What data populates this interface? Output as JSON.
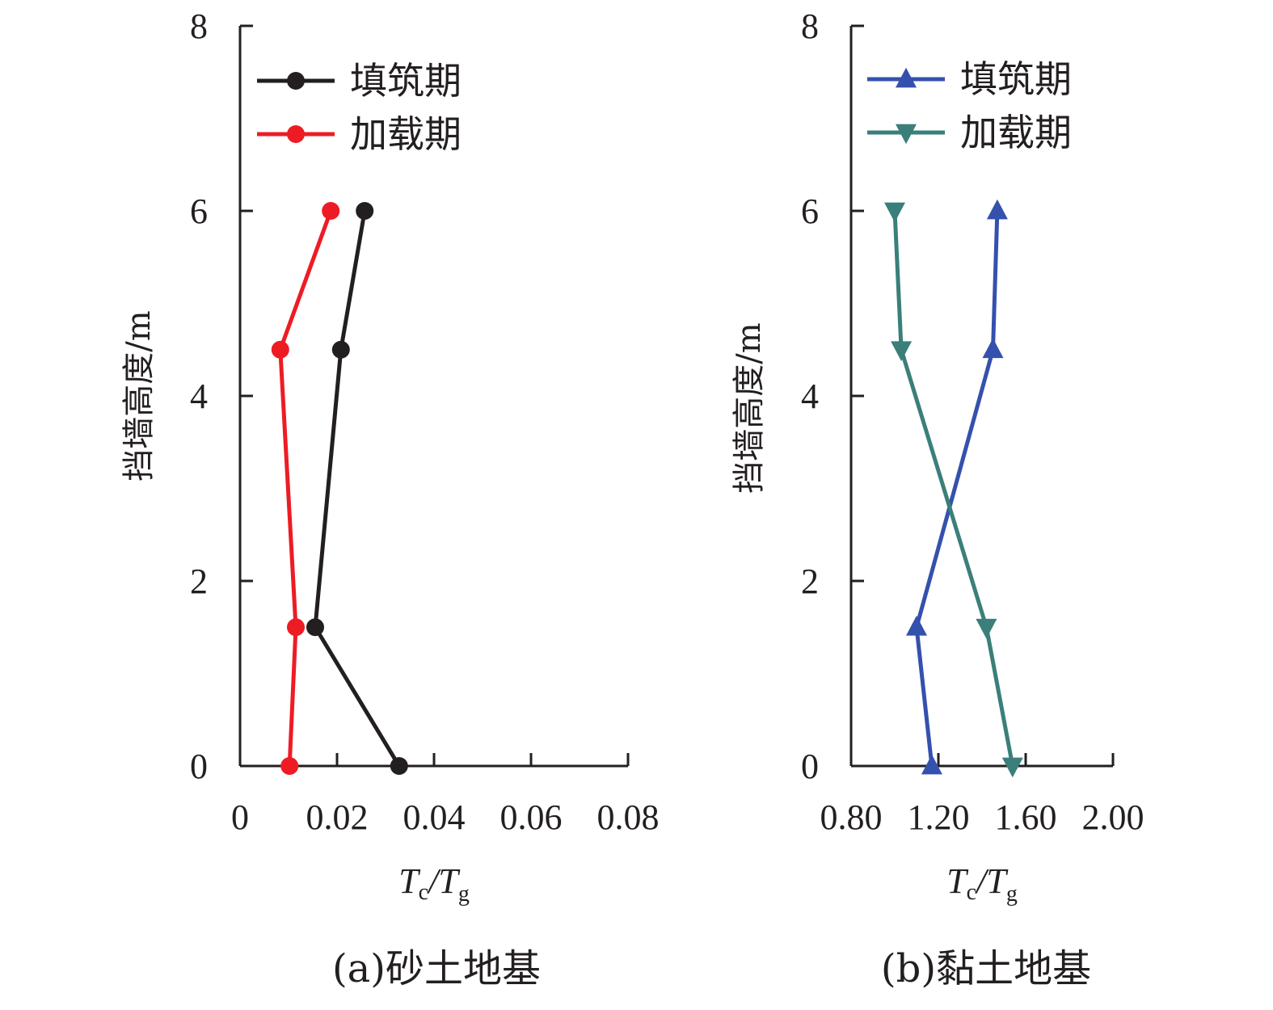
{
  "chart_data": [
    {
      "type": "line",
      "panel": "(a)",
      "title": "(a)砂土地基",
      "xlabel": "Tc/Tg",
      "xlabel_main": "T",
      "xlabel_sub1": "c",
      "xlabel_sub2": "g",
      "ylabel": "挡墙高度/m",
      "xlim": [
        0,
        0.08
      ],
      "ylim": [
        0,
        8
      ],
      "xticks": [
        0,
        0.02,
        0.04,
        0.06,
        0.08
      ],
      "xtick_labels": [
        "0",
        "0.02",
        "0.04",
        "0.06",
        "0.08"
      ],
      "yticks": [
        0,
        2,
        4,
        6,
        8
      ],
      "ytick_labels": [
        "0",
        "2",
        "4",
        "6",
        "8"
      ],
      "grid": false,
      "legend_position": "top-left",
      "series": [
        {
          "name": "填筑期",
          "color": "#231f20",
          "marker": "circle",
          "points": [
            {
              "x": 0.0257,
              "y": 6.0
            },
            {
              "x": 0.0208,
              "y": 4.5
            },
            {
              "x": 0.0155,
              "y": 1.5
            },
            {
              "x": 0.0328,
              "y": 0.0
            }
          ]
        },
        {
          "name": "加载期",
          "color": "#ed1c24",
          "marker": "circle",
          "points": [
            {
              "x": 0.0187,
              "y": 6.0
            },
            {
              "x": 0.0083,
              "y": 4.5
            },
            {
              "x": 0.0115,
              "y": 1.5
            },
            {
              "x": 0.0102,
              "y": 0.0
            }
          ]
        }
      ]
    },
    {
      "type": "line",
      "panel": "(b)",
      "title": "(b)黏土地基",
      "xlabel": "Tc/Tg",
      "xlabel_main": "T",
      "xlabel_sub1": "c",
      "xlabel_sub2": "g",
      "ylabel": "挡墙高度/m",
      "xlim": [
        0.8,
        2.0
      ],
      "ylim": [
        0,
        8
      ],
      "xticks": [
        0.8,
        1.2,
        1.6,
        2.0
      ],
      "xtick_labels": [
        "0.80",
        "1.20",
        "1.60",
        "2.00"
      ],
      "yticks": [
        0,
        2,
        4,
        6,
        8
      ],
      "ytick_labels": [
        "0",
        "2",
        "4",
        "6",
        "8"
      ],
      "grid": false,
      "legend_position": "top-left",
      "series": [
        {
          "name": "填筑期",
          "color": "#3451ad",
          "marker": "triangle-up",
          "points": [
            {
              "x": 1.47,
              "y": 6.0
            },
            {
              "x": 1.45,
              "y": 4.5
            },
            {
              "x": 1.1,
              "y": 1.5
            },
            {
              "x": 1.17,
              "y": 0.0
            }
          ]
        },
        {
          "name": "加载期",
          "color": "#3a7f7a",
          "marker": "triangle-down",
          "points": [
            {
              "x": 1.0,
              "y": 6.0
            },
            {
              "x": 1.03,
              "y": 4.5
            },
            {
              "x": 1.42,
              "y": 1.5
            },
            {
              "x": 1.54,
              "y": 0.0
            }
          ]
        }
      ]
    }
  ]
}
